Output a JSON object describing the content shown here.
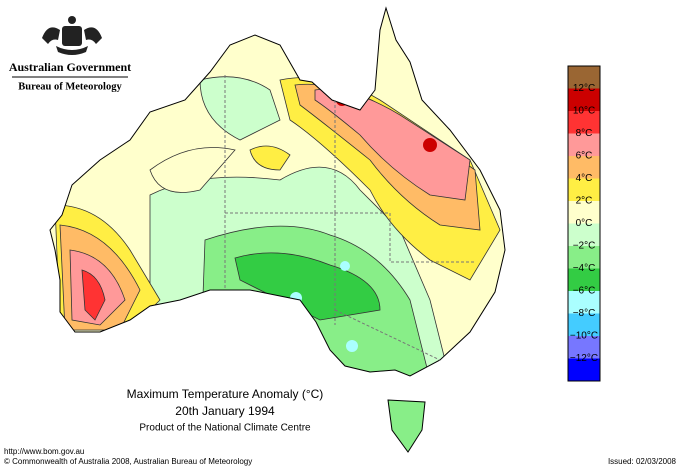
{
  "header": {
    "government": "Australian Government",
    "bureau": "Bureau of Meteorology"
  },
  "legend": {
    "colors": [
      "#9a6633",
      "#cc0000",
      "#ff3333",
      "#ff9999",
      "#ffbb66",
      "#ffee44",
      "#ffffcc",
      "#ccffcc",
      "#88ee88",
      "#33cc44",
      "#aaffff",
      "#44ccff",
      "#7777ff",
      "#0000ff"
    ],
    "labels": [
      "12°C",
      "10°C",
      "8°C",
      "6°C",
      "4°C",
      "2°C",
      "0°C",
      "−2°C",
      "−4°C",
      "−6°C",
      "−8°C",
      "−10°C",
      "−12°C"
    ]
  },
  "title": {
    "line1": "Maximum Temperature Anomaly (°C)",
    "line2": "20th January 1994",
    "line3": "Product of the National Climate Centre"
  },
  "footer": {
    "url": "http://www.bom.gov.au",
    "copyright": "© Commonwealth of Australia 2008, Australian Bureau of Meteorology",
    "issued": "Issued: 02/03/2008"
  }
}
